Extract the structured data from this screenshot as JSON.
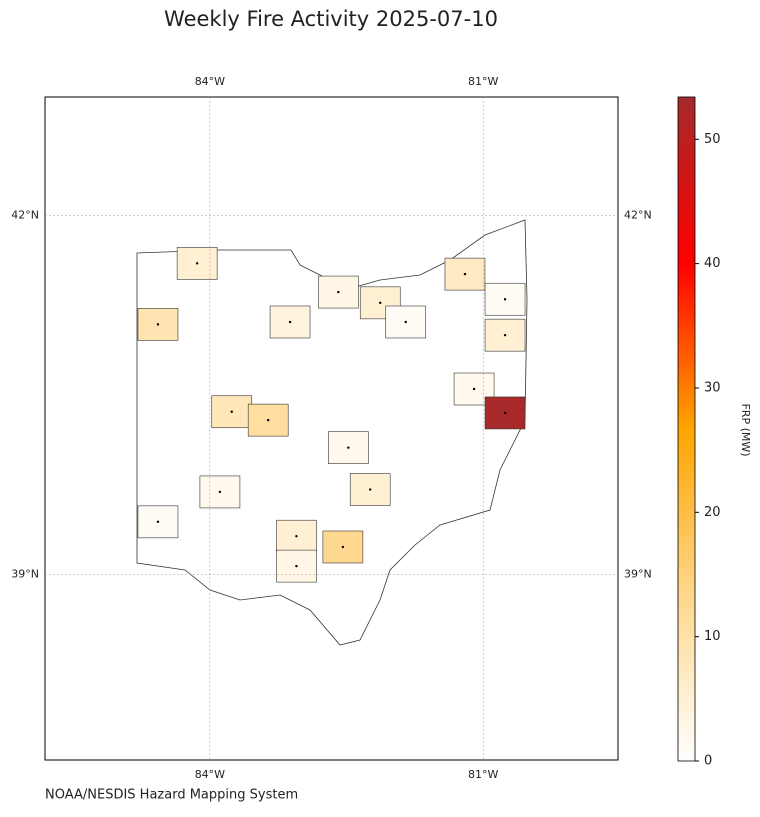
{
  "chart_data": {
    "type": "map",
    "title": "Weekly Fire Activity 2025-07-10",
    "source": "NOAA/NESDIS Hazard Mapping System",
    "xlim": [
      -85.81,
      -79.52
    ],
    "ylim": [
      37.45,
      42.99
    ],
    "xticks": [
      {
        "value": -84,
        "label": "84°W"
      },
      {
        "value": -81,
        "label": "81°W"
      }
    ],
    "yticks": [
      {
        "value": 42,
        "label": "42°N"
      },
      {
        "value": 39,
        "label": "39°N"
      }
    ],
    "grid": true,
    "fires": {
      "lon": [
        -84.14,
        -84.57,
        -83.76,
        -83.36,
        -82.59,
        -83.12,
        -82.13,
        -81.85,
        -81.2,
        -80.76,
        -80.76,
        -81.1,
        -80.76,
        -82.48,
        -82.24,
        -83.89,
        -84.57,
        -83.05,
        -82.54,
        -83.05
      ],
      "lat": [
        41.6,
        41.09,
        40.36,
        40.29,
        41.36,
        41.11,
        41.27,
        41.11,
        41.51,
        41.3,
        41.0,
        40.55,
        40.35,
        40.06,
        39.71,
        39.69,
        39.44,
        39.32,
        39.23,
        39.07
      ],
      "values": [
        5,
        9,
        8,
        11,
        3,
        4,
        5,
        1,
        7,
        1,
        5,
        2,
        53,
        2,
        5,
        2,
        1,
        5,
        13,
        3
      ]
    },
    "colorbar": {
      "label": "FRP (MW)",
      "lim": [
        0,
        53.4
      ],
      "ticks": [
        0,
        10,
        20,
        30,
        40,
        50
      ],
      "colors": [
        "#ffffff",
        "#ffd78c",
        "#ffa500",
        "#ff0000",
        "#a52a2a"
      ]
    }
  }
}
